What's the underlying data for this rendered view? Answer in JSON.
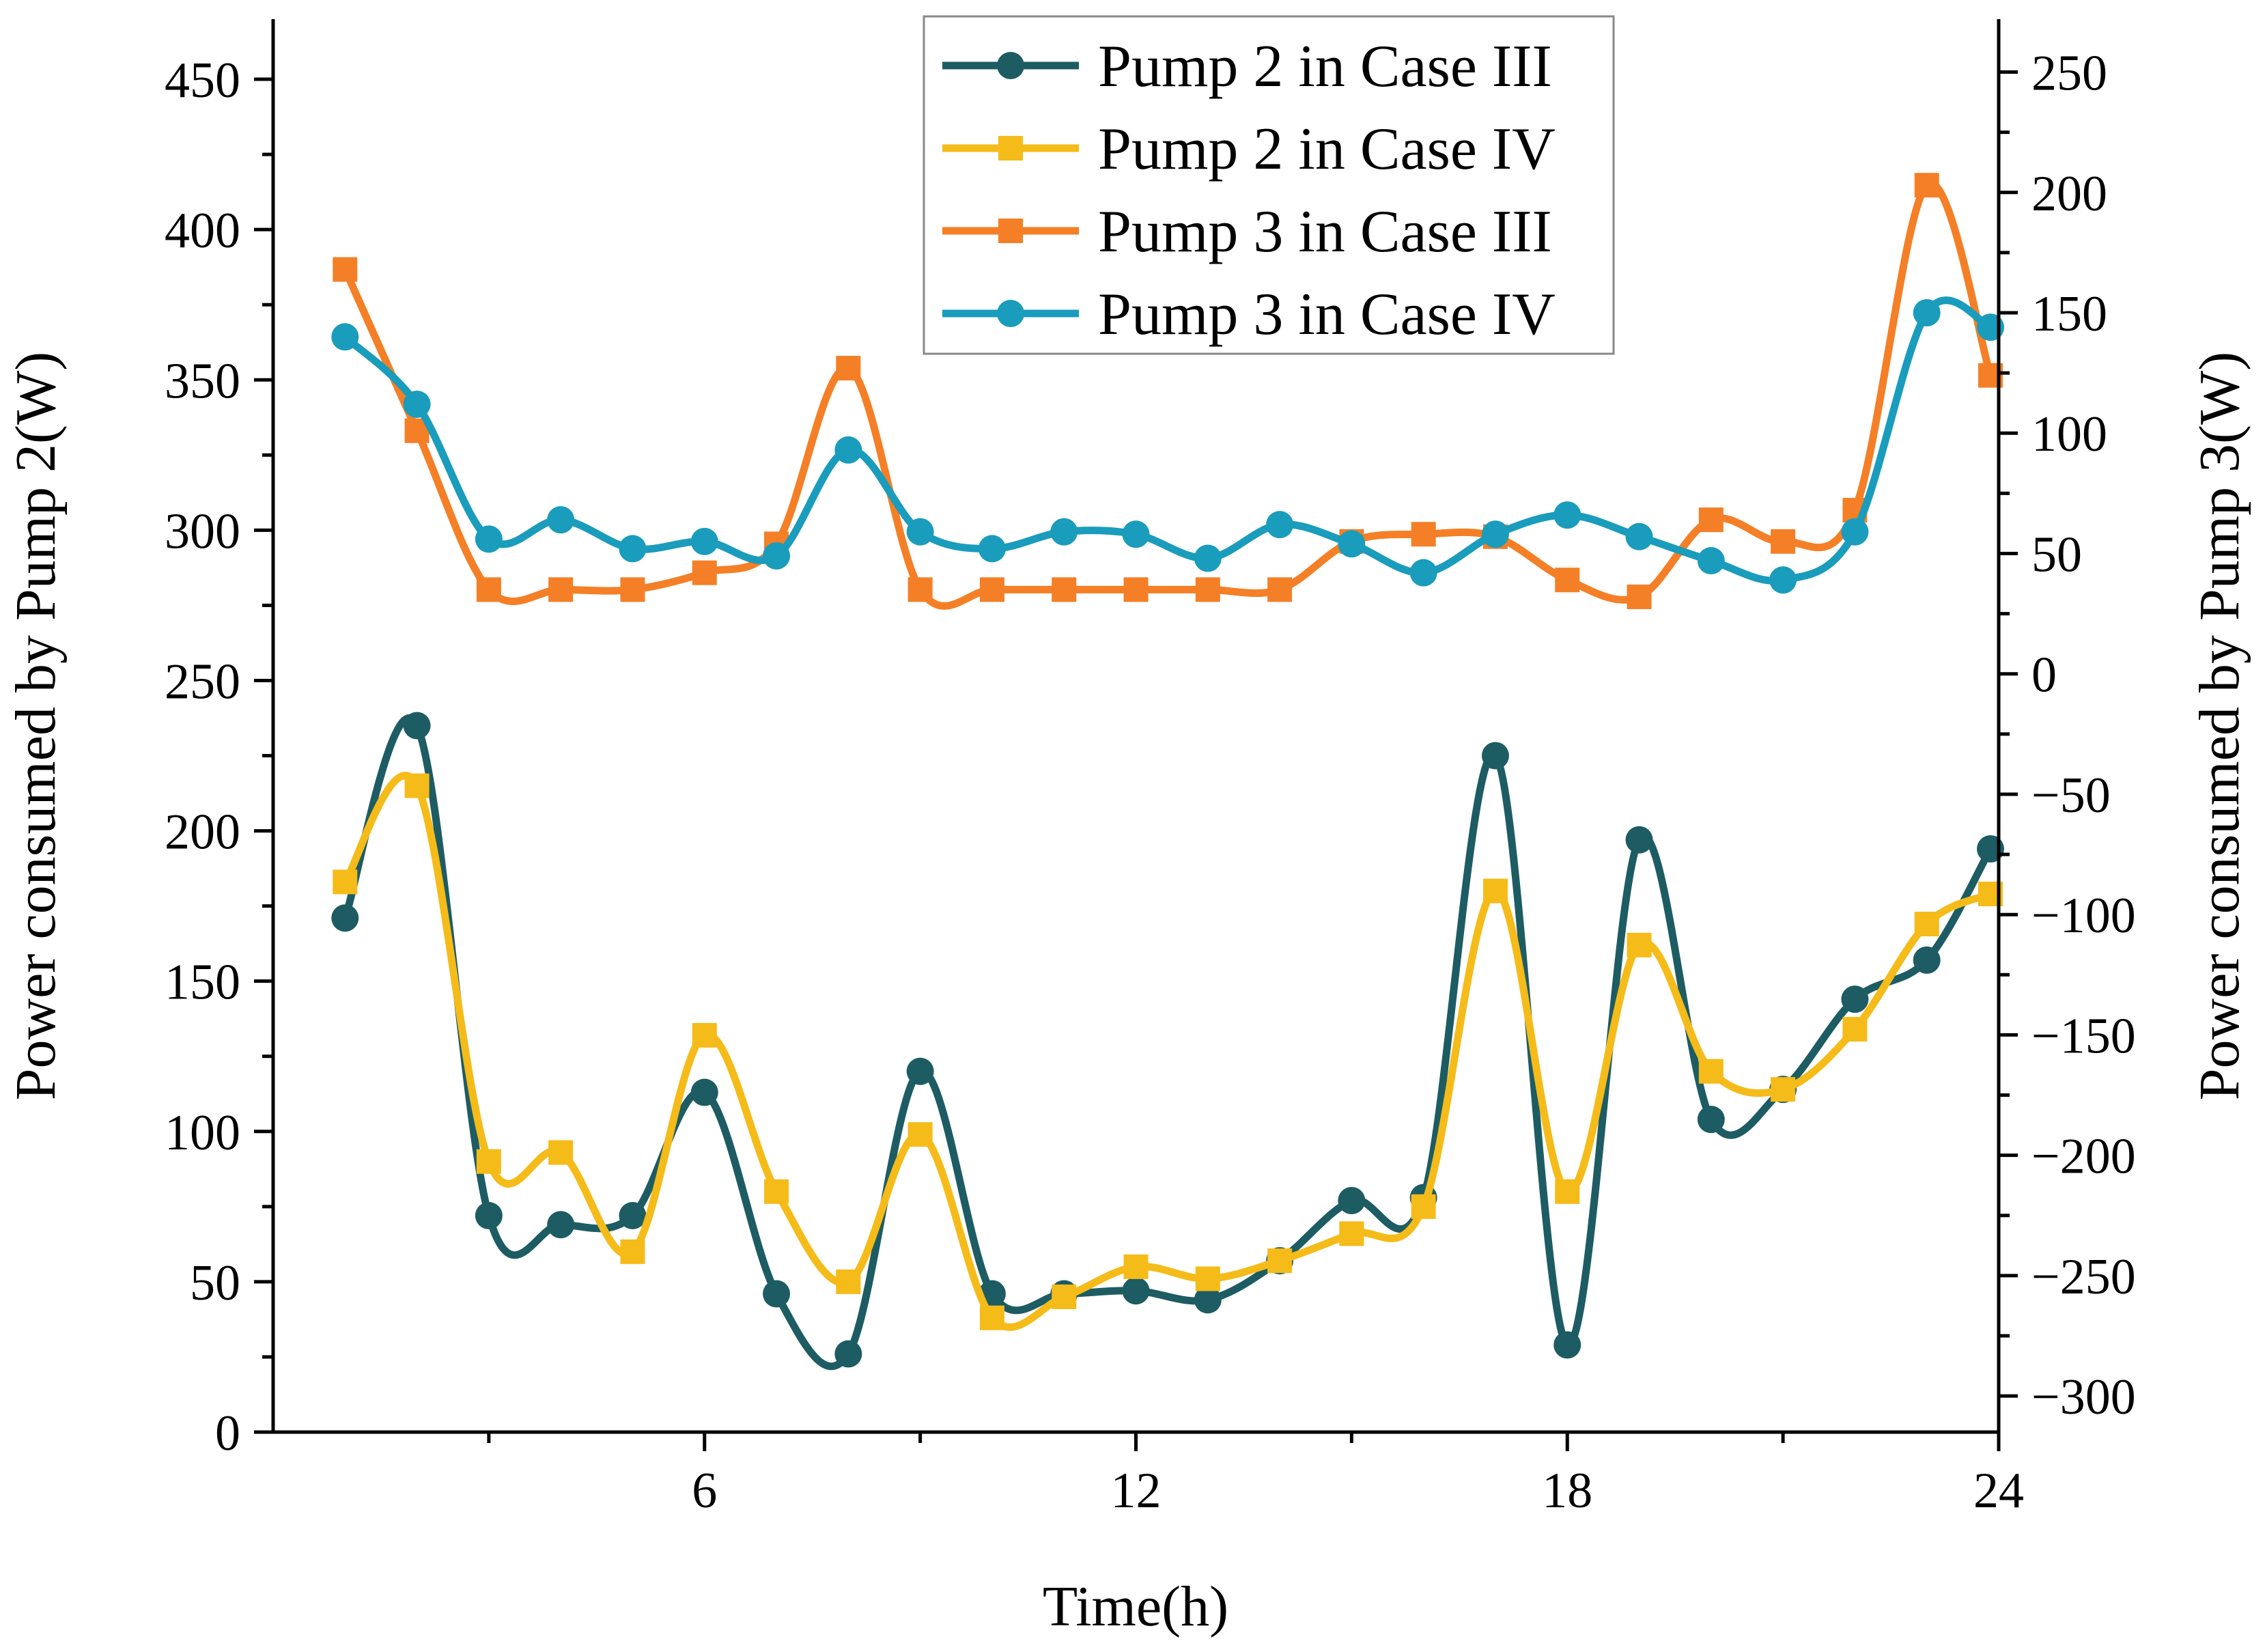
{
  "chart_data": {
    "type": "line",
    "xlabel": "Time(h)",
    "ylabel_left": "Power consumed by Pump 2(W)",
    "ylabel_right": "Power consumed by Pump 3(W)",
    "xlim": [
      0,
      24
    ],
    "xticks": [
      "6",
      "12",
      "18",
      "24"
    ],
    "ylim_left": [
      0,
      470
    ],
    "yticks_left": [
      "0",
      "50",
      "100",
      "150",
      "200",
      "250",
      "300",
      "350",
      "400",
      "450"
    ],
    "ylim_right": [
      -315,
      272
    ],
    "yticks_right": [
      "−300",
      "−250",
      "−200",
      "−150",
      "−100",
      "−50",
      "0",
      "50",
      "100",
      "150",
      "200",
      "250"
    ],
    "grid": false,
    "legend_position": "top-center",
    "x": [
      1,
      2,
      3,
      4,
      5,
      6,
      7,
      8,
      9,
      10,
      11,
      12,
      13,
      14,
      15,
      16,
      17,
      18,
      19,
      20,
      21,
      22,
      23,
      24
    ],
    "series": [
      {
        "name": "Pump 2 in Case III",
        "axis": "left",
        "marker": "circle",
        "color": "#1d5c63",
        "values": [
          171,
          235,
          72,
          69,
          72,
          113,
          46,
          26,
          120,
          46,
          46,
          47,
          44,
          57,
          77,
          78,
          225,
          29,
          197,
          104,
          114,
          144,
          157,
          194
        ]
      },
      {
        "name": "Pump 2 in Case IV",
        "axis": "left",
        "marker": "square",
        "color": "#f5bb19",
        "values": [
          183,
          215,
          90,
          93,
          60,
          132,
          80,
          50,
          99,
          38,
          45,
          55,
          51,
          57,
          66,
          75,
          180,
          80,
          162,
          120,
          114,
          134,
          169,
          179
        ]
      },
      {
        "name": "Pump 3 in Case III",
        "axis": "right",
        "marker": "square",
        "color": "#f47f26",
        "values": [
          168,
          101,
          35,
          35,
          35,
          42,
          54,
          127,
          35,
          35,
          35,
          35,
          35,
          35,
          55,
          58,
          57,
          39,
          32,
          64,
          55,
          68,
          203,
          124
        ]
      },
      {
        "name": "Pump 3 in Case IV",
        "axis": "right",
        "marker": "circle",
        "color": "#1a9cbc",
        "values": [
          140,
          112,
          56,
          64,
          52,
          55,
          49,
          93,
          59,
          52,
          59,
          58,
          48,
          62,
          54,
          42,
          58,
          66,
          57,
          47,
          39,
          59,
          150,
          144
        ]
      }
    ]
  }
}
